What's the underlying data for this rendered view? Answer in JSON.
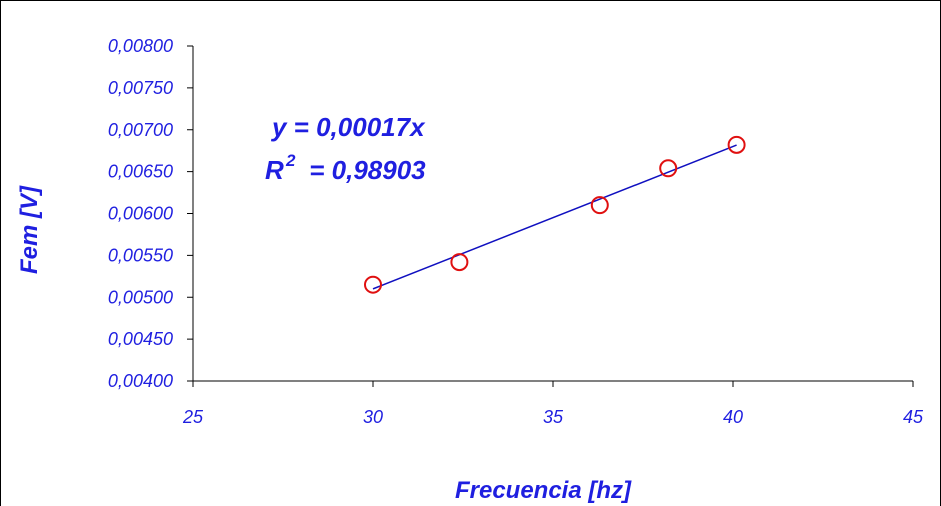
{
  "chart_data": {
    "type": "scatter",
    "xlabel": "Frecuencia [hz]",
    "ylabel": "Fem [V]",
    "xlim": [
      25,
      45
    ],
    "ylim": [
      0.004,
      0.008
    ],
    "x_ticks": [
      "25",
      "30",
      "35",
      "40",
      "45"
    ],
    "y_ticks": [
      "0,00400",
      "0,00450",
      "0,00500",
      "0,00550",
      "0,00600",
      "0,00650",
      "0,00700",
      "0,00750",
      "0,00800"
    ],
    "grid": false,
    "legend": "none",
    "series": [
      {
        "points": [
          {
            "x": 30.0,
            "y": 0.00515
          },
          {
            "x": 32.4,
            "y": 0.00542
          },
          {
            "x": 36.3,
            "y": 0.0061
          },
          {
            "x": 38.2,
            "y": 0.00654
          },
          {
            "x": 40.1,
            "y": 0.00682
          }
        ],
        "marker": "open-circle",
        "color": "#e01010"
      }
    ],
    "trendline": {
      "type": "linear",
      "slope": 0.00017,
      "intercept": 0,
      "x_range": [
        30.0,
        40.1
      ],
      "color": "#1010c0"
    },
    "annotations": {
      "equation": "y = 0,00017x",
      "r2_prefix": "R",
      "r2_superscript": "2",
      "r2_value": " = 0,98903"
    }
  }
}
